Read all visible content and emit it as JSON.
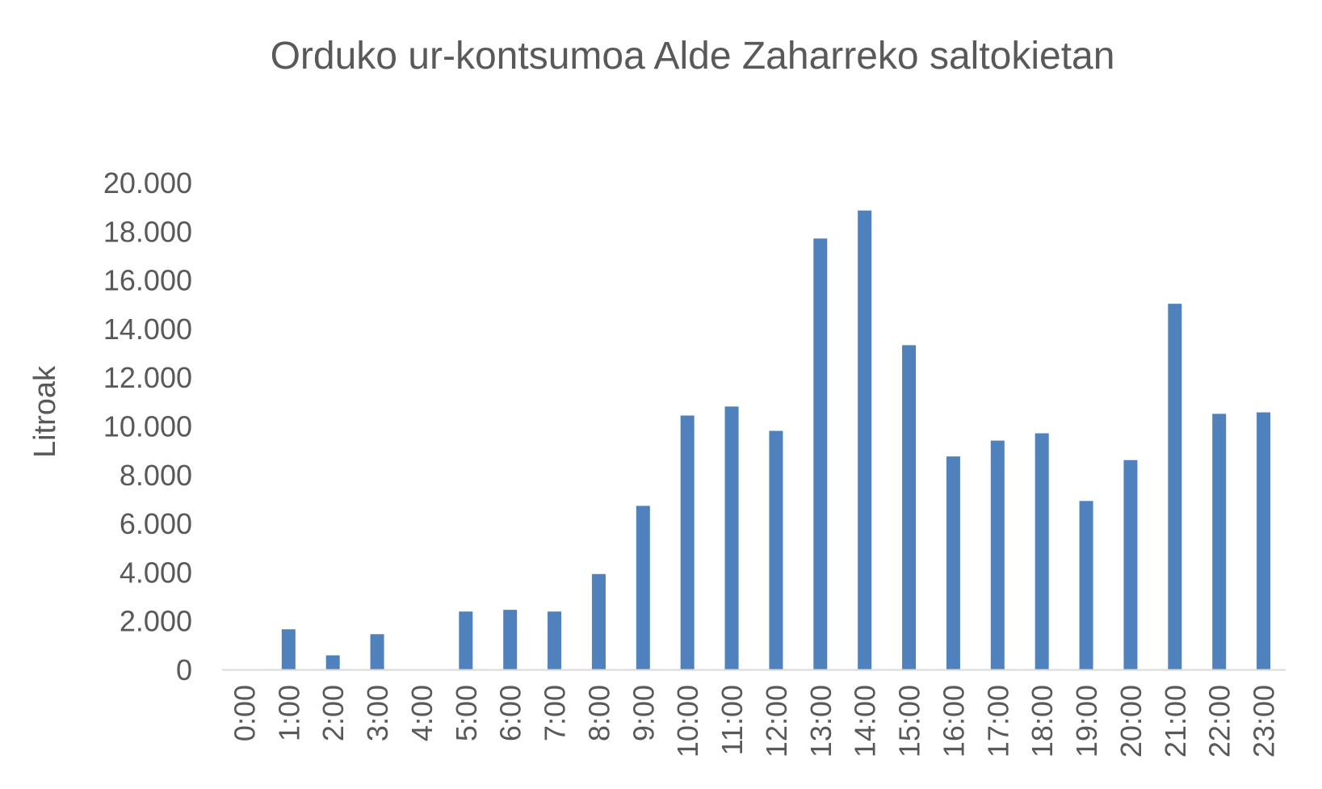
{
  "chart_data": {
    "type": "bar",
    "title": "Orduko ur-kontsumoa Alde Zaharreko saltokietan",
    "xlabel": "",
    "ylabel": "Litroak",
    "categories": [
      "0:00",
      "1:00",
      "2:00",
      "3:00",
      "4:00",
      "5:00",
      "6:00",
      "7:00",
      "8:00",
      "9:00",
      "10:00",
      "11:00",
      "12:00",
      "13:00",
      "14:00",
      "15:00",
      "16:00",
      "17:00",
      "18:00",
      "19:00",
      "20:00",
      "21:00",
      "22:00",
      "23:00"
    ],
    "series": [
      {
        "values": [
          0,
          1650,
          580,
          1450,
          0,
          2380,
          2450,
          2380,
          3920,
          6720,
          10430,
          10800,
          9800,
          17700,
          18850,
          13320,
          8750,
          9400,
          9700,
          6920,
          8600,
          15020,
          10500,
          10560
        ]
      }
    ],
    "ylim": [
      0,
      20000
    ],
    "yticks": [
      0,
      2000,
      4000,
      6000,
      8000,
      10000,
      12000,
      14000,
      16000,
      18000,
      20000
    ],
    "ytick_labels": [
      "0",
      "2.000",
      "4.000",
      "6.000",
      "8.000",
      "10.000",
      "12.000",
      "14.000",
      "16.000",
      "18.000",
      "20.000"
    ],
    "grid": false,
    "legend": "none",
    "colors": {
      "bar": "#4F81BD",
      "axis": "#D9D9D9",
      "text": "#595959"
    }
  }
}
